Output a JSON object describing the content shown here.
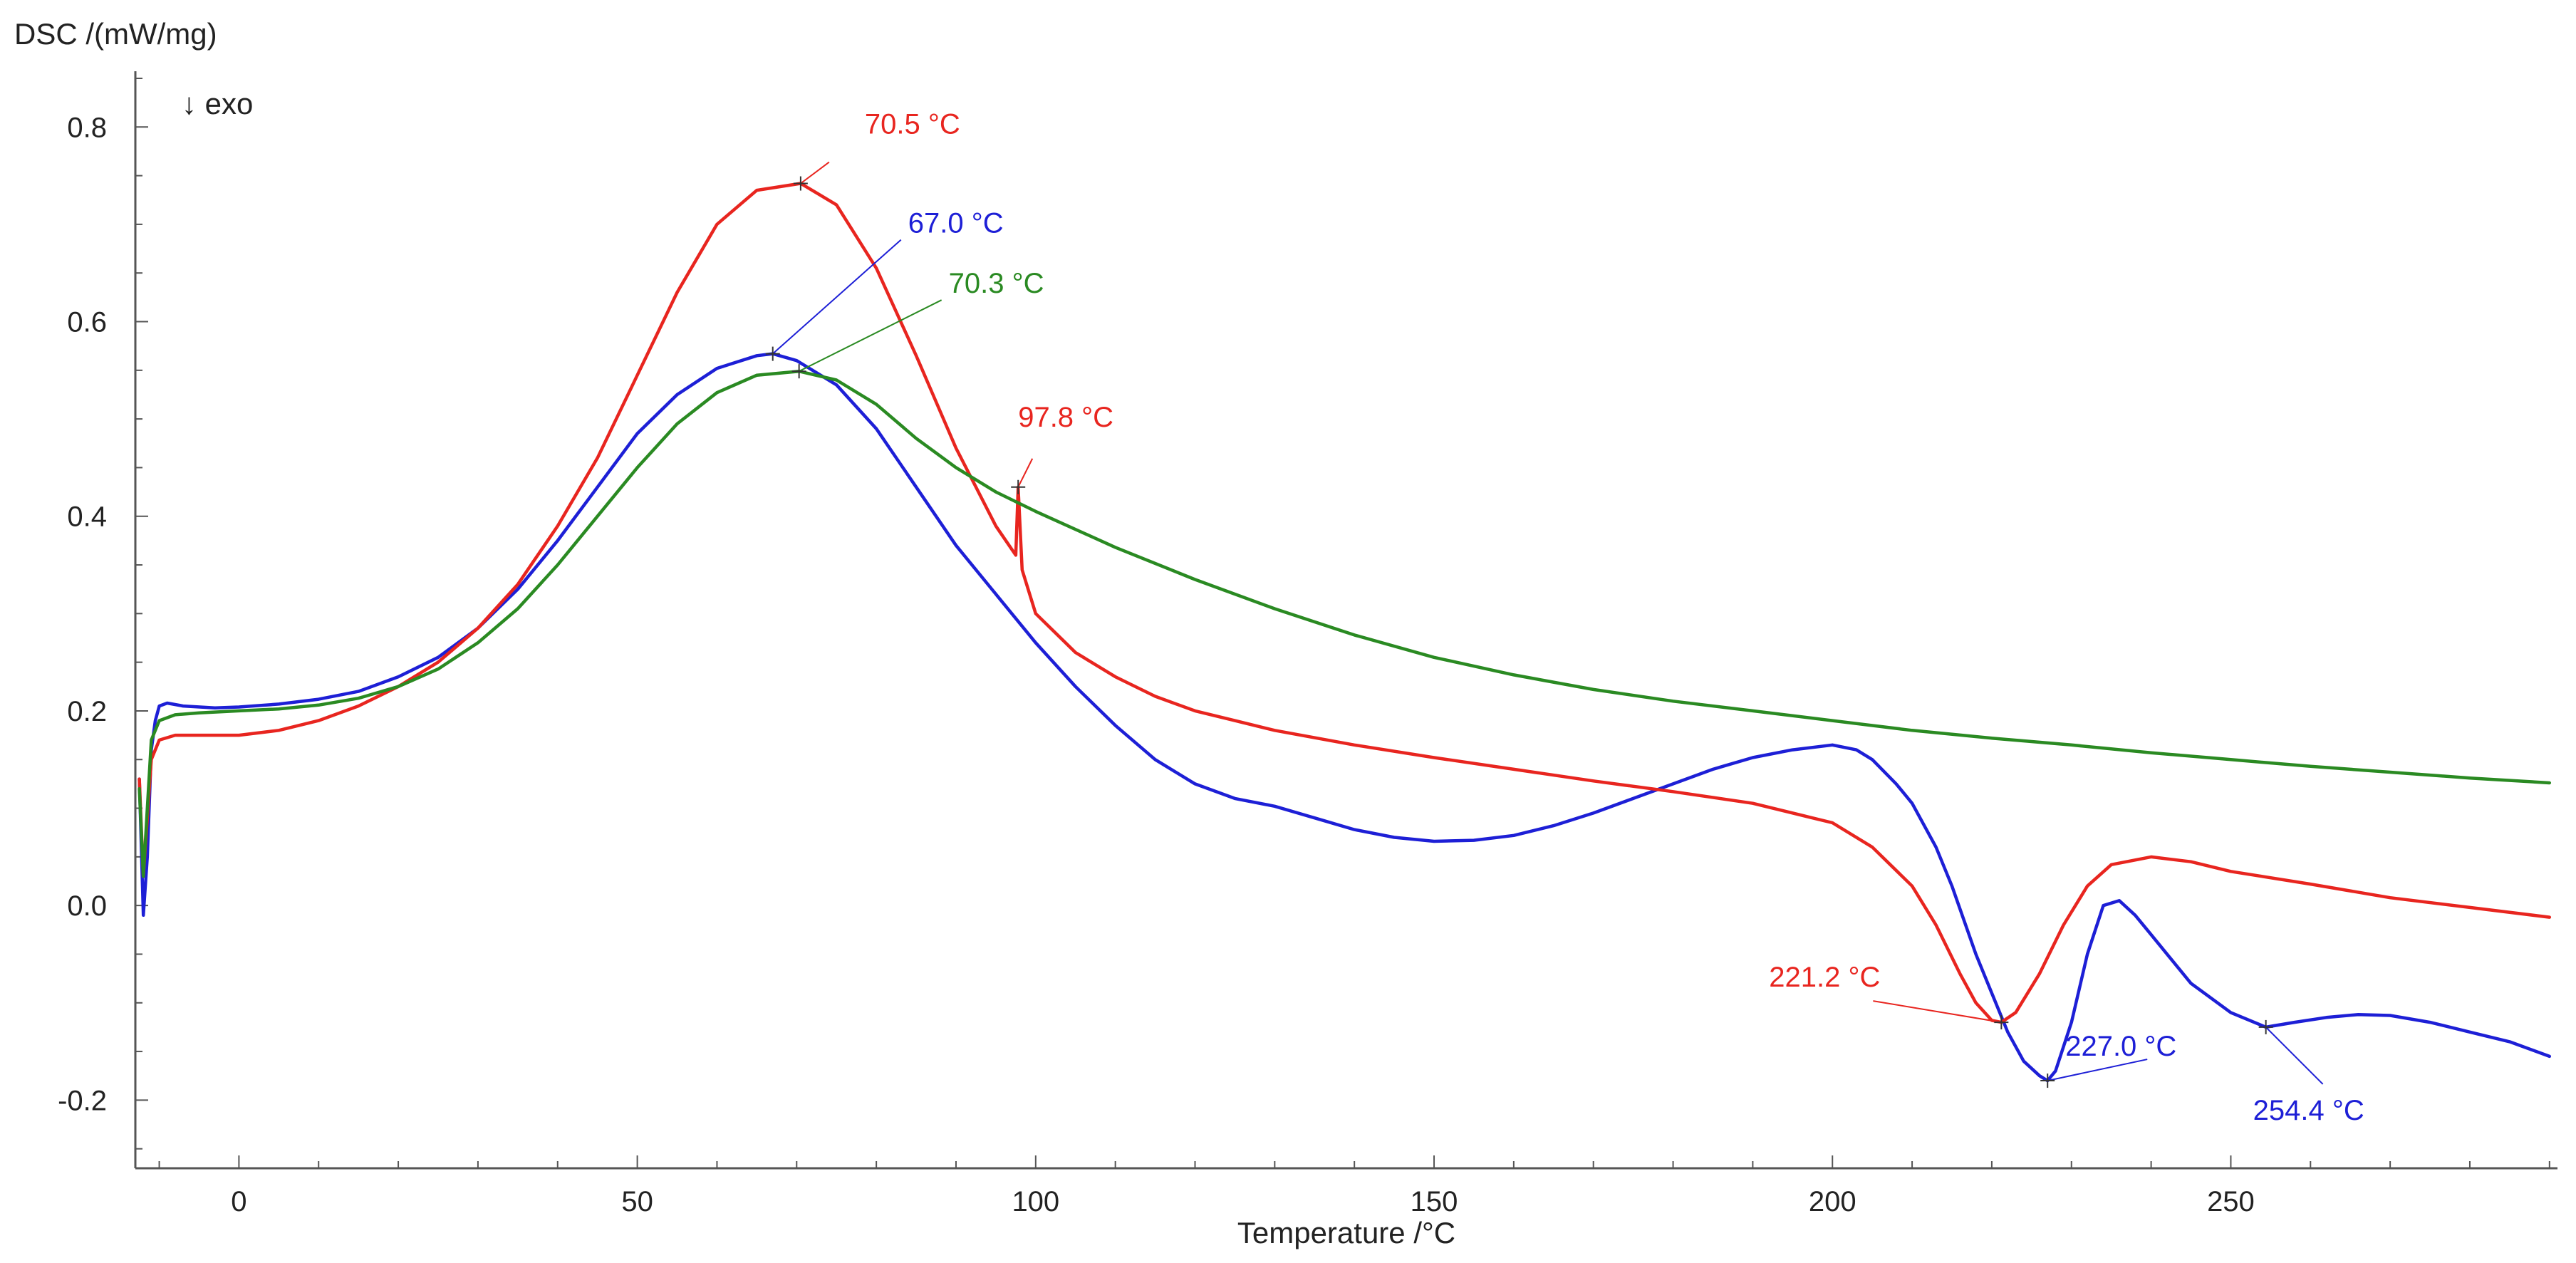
{
  "chart_data": {
    "type": "line",
    "ylabel": "DSC /(mW/mg)",
    "xlabel": "Temperature /°C",
    "direction_note": "↓ exo",
    "xlim": [
      -13,
      291
    ],
    "ylim": [
      -0.27,
      0.85
    ],
    "x_ticks": [
      0,
      50,
      100,
      150,
      200,
      250
    ],
    "x_tick_labels": [
      "0",
      "50",
      "100",
      "150",
      "200",
      "250"
    ],
    "y_ticks": [
      -0.2,
      0.0,
      0.2,
      0.4,
      0.6,
      0.8
    ],
    "y_tick_labels": [
      "-0.2",
      "0.0",
      "0.2",
      "0.4",
      "0.6",
      "0.8"
    ],
    "colors": {
      "red": "#e8251f",
      "blue": "#1d1fd6",
      "green": "#2a8a22",
      "axis": "#555555"
    },
    "series": [
      {
        "name": "blue",
        "color": "#1d1fd6",
        "x": [
          -12.5,
          -12,
          -11.5,
          -11,
          -10.5,
          -10,
          -9,
          -7,
          -3,
          0,
          5,
          10,
          15,
          20,
          25,
          30,
          35,
          40,
          45,
          50,
          55,
          60,
          65,
          67,
          70,
          75,
          80,
          85,
          90,
          95,
          100,
          105,
          110,
          115,
          120,
          125,
          130,
          135,
          140,
          145,
          150,
          155,
          160,
          165,
          170,
          175,
          180,
          185,
          190,
          195,
          200,
          203,
          205,
          208,
          210,
          213,
          215,
          218,
          220,
          222,
          224,
          226,
          227,
          228,
          230,
          232,
          234,
          236,
          238,
          240,
          245,
          250,
          254.4,
          258,
          262,
          266,
          270,
          275,
          280,
          285,
          290
        ],
        "y": [
          0.13,
          -0.01,
          0.05,
          0.16,
          0.19,
          0.205,
          0.208,
          0.205,
          0.203,
          0.204,
          0.207,
          0.212,
          0.22,
          0.235,
          0.255,
          0.285,
          0.325,
          0.375,
          0.43,
          0.485,
          0.525,
          0.552,
          0.565,
          0.567,
          0.56,
          0.535,
          0.49,
          0.43,
          0.37,
          0.32,
          0.27,
          0.225,
          0.185,
          0.15,
          0.125,
          0.11,
          0.102,
          0.09,
          0.078,
          0.07,
          0.066,
          0.067,
          0.072,
          0.082,
          0.095,
          0.11,
          0.125,
          0.14,
          0.152,
          0.16,
          0.165,
          0.16,
          0.15,
          0.125,
          0.105,
          0.06,
          0.02,
          -0.05,
          -0.09,
          -0.13,
          -0.16,
          -0.175,
          -0.18,
          -0.17,
          -0.12,
          -0.05,
          0.0,
          0.005,
          -0.01,
          -0.03,
          -0.08,
          -0.11,
          -0.125,
          -0.12,
          -0.115,
          -0.112,
          -0.113,
          -0.12,
          -0.13,
          -0.14,
          -0.155
        ]
      },
      {
        "name": "red",
        "color": "#e8251f",
        "x": [
          -12.5,
          -12,
          -11.5,
          -11,
          -10,
          -8,
          -5,
          0,
          5,
          10,
          15,
          20,
          25,
          30,
          35,
          40,
          45,
          50,
          55,
          60,
          65,
          70.5,
          75,
          80,
          85,
          90,
          95,
          97.5,
          97.8,
          98.3,
          100,
          105,
          110,
          115,
          120,
          125,
          130,
          140,
          150,
          160,
          170,
          180,
          190,
          200,
          205,
          210,
          213,
          216,
          218,
          220,
          221.2,
          223,
          226,
          229,
          232,
          235,
          240,
          245,
          250,
          260,
          270,
          280,
          290
        ],
        "y": [
          0.13,
          0.03,
          0.09,
          0.15,
          0.17,
          0.175,
          0.175,
          0.175,
          0.18,
          0.19,
          0.205,
          0.225,
          0.25,
          0.285,
          0.33,
          0.39,
          0.46,
          0.545,
          0.63,
          0.7,
          0.735,
          0.742,
          0.72,
          0.655,
          0.565,
          0.47,
          0.39,
          0.36,
          0.43,
          0.345,
          0.3,
          0.26,
          0.235,
          0.215,
          0.2,
          0.19,
          0.18,
          0.165,
          0.152,
          0.14,
          0.128,
          0.117,
          0.105,
          0.085,
          0.06,
          0.02,
          -0.02,
          -0.07,
          -0.1,
          -0.118,
          -0.12,
          -0.11,
          -0.07,
          -0.02,
          0.02,
          0.042,
          0.05,
          0.045,
          0.035,
          0.022,
          0.008,
          -0.002,
          -0.012
        ]
      },
      {
        "name": "green",
        "color": "#2a8a22",
        "x": [
          -12.5,
          -12,
          -11.5,
          -11,
          -10,
          -8,
          -5,
          0,
          5,
          10,
          15,
          20,
          25,
          30,
          35,
          40,
          45,
          50,
          55,
          60,
          65,
          70.3,
          75,
          80,
          85,
          90,
          95,
          100,
          110,
          120,
          130,
          140,
          150,
          160,
          170,
          180,
          190,
          200,
          210,
          220,
          230,
          240,
          250,
          260,
          270,
          280,
          290
        ],
        "y": [
          0.12,
          0.03,
          0.1,
          0.17,
          0.19,
          0.196,
          0.198,
          0.2,
          0.202,
          0.206,
          0.213,
          0.225,
          0.243,
          0.27,
          0.305,
          0.35,
          0.4,
          0.45,
          0.495,
          0.527,
          0.545,
          0.549,
          0.54,
          0.515,
          0.48,
          0.45,
          0.425,
          0.405,
          0.368,
          0.335,
          0.305,
          0.278,
          0.255,
          0.237,
          0.222,
          0.21,
          0.2,
          0.19,
          0.18,
          0.172,
          0.165,
          0.157,
          0.15,
          0.143,
          0.137,
          0.131,
          0.126
        ]
      }
    ],
    "annotations": [
      {
        "text": "70.5 °C",
        "x": 70.5,
        "y": 0.742,
        "color": "#e8251f"
      },
      {
        "text": "67.0 °C",
        "x": 67.0,
        "y": 0.567,
        "color": "#1d1fd6"
      },
      {
        "text": "70.3 °C",
        "x": 70.3,
        "y": 0.549,
        "color": "#2a8a22"
      },
      {
        "text": "97.8 °C",
        "x": 97.8,
        "y": 0.43,
        "color": "#e8251f"
      },
      {
        "text": "221.2 °C",
        "x": 221.2,
        "y": -0.12,
        "color": "#e8251f"
      },
      {
        "text": "227.0 °C",
        "x": 227.0,
        "y": -0.18,
        "color": "#1d1fd6"
      },
      {
        "text": "254.4 °C",
        "x": 254.4,
        "y": -0.125,
        "color": "#1d1fd6"
      }
    ]
  }
}
